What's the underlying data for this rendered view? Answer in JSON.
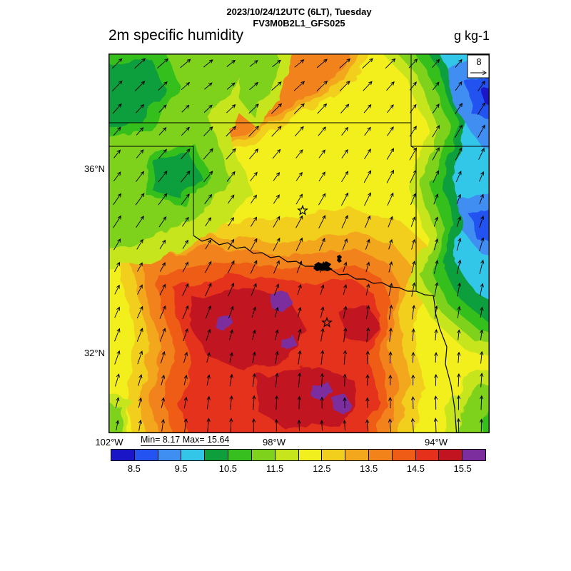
{
  "header": {
    "datetime": "2023/10/24/12UTC (6LT), Tuesday",
    "model": "FV3M0B2L1_GFS025",
    "title": "2m specific humidity",
    "units": "g kg-1"
  },
  "map": {
    "lat_top": "36°N",
    "lat_bottom": "32°N",
    "lon_left": "102°W",
    "lon_mid": "98°W",
    "lon_right": "94°W",
    "stats": "Min= 8.17 Max= 15.64",
    "ref_vector_label": "8"
  },
  "chart_data": {
    "type": "heatmap",
    "title": "2m specific humidity",
    "units": "g kg-1",
    "valid_time": "2023/10/24/12UTC (6LT), Tuesday",
    "model_run": "FV3M0B2L1_GFS025",
    "stat_min": 8.17,
    "stat_max": 15.64,
    "lat_ticks": [
      "36°N",
      "32°N"
    ],
    "lon_ticks": [
      "102°W",
      "98°W",
      "94°W"
    ],
    "wind_overlay": {
      "style": "arrows",
      "reference_value": 8
    },
    "overlays": [
      "filled humidity contours",
      "wind vector arrows",
      "state borders",
      "river boundary",
      "2 star markers",
      "lake (black fill)"
    ],
    "pattern_summary": "Lowest humidity (8-10.5 g/kg, blue/cyan) in the northeast corner of the domain; green band (10.5-12) over the northwest corner and eastern third; yellow-orange transition through the center and an orange tongue near the top-center; highest humidity (13.5-15.5+, red with small purple maxima) across the southern half; wind arrows point northeast in the north (southwesterly flow) veering to due north in the south (southerly flow).",
    "colorbar": {
      "orientation": "horizontal",
      "value_range": [
        8,
        16
      ],
      "segment_interval": 0.5,
      "tick_labels": [
        "8.5",
        "9.5",
        "10.5",
        "11.5",
        "12.5",
        "13.5",
        "14.5",
        "15.5"
      ],
      "colors": [
        "#1a16c8",
        "#2353f0",
        "#3f8ef2",
        "#33c6e8",
        "#0f9e3c",
        "#36bf1f",
        "#7ed21c",
        "#c7e51c",
        "#f2ef1f",
        "#f2cf1d",
        "#f2a71c",
        "#f2831a",
        "#ee5c15",
        "#e5301c",
        "#c11420",
        "#7c2d9e"
      ]
    }
  }
}
